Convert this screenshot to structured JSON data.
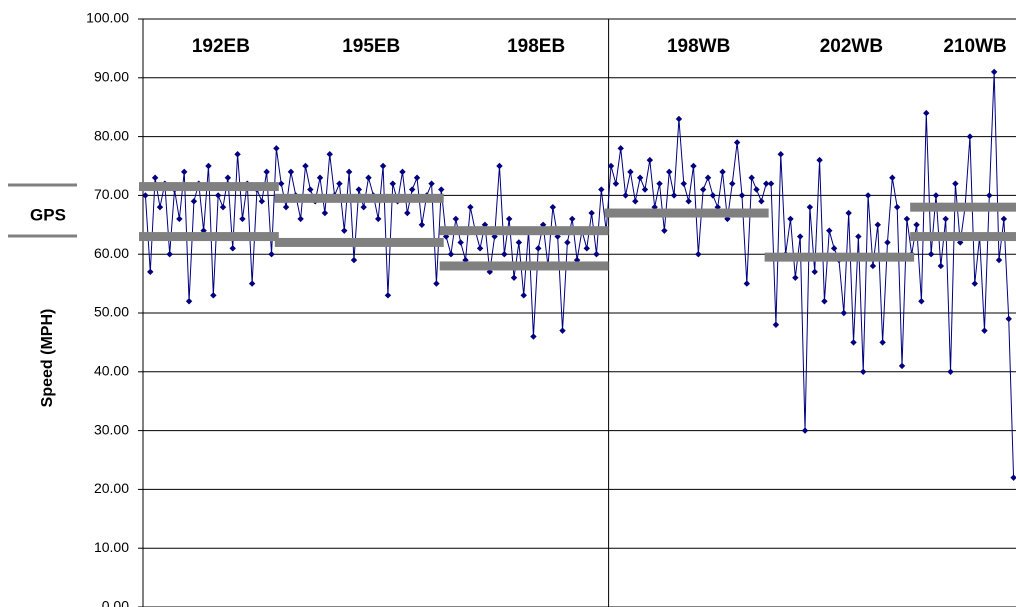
{
  "chart_data": {
    "type": "line",
    "y_label": "Speed (MPH)",
    "legend_label": "GPS",
    "color": "#000080",
    "band_color": "#808080",
    "grid": true,
    "ylim": [
      0,
      100
    ],
    "yticks": [
      {
        "value": 0,
        "label": "0.00"
      },
      {
        "value": 10,
        "label": "10.00"
      },
      {
        "value": 20,
        "label": "20.00"
      },
      {
        "value": 30,
        "label": "30.00"
      },
      {
        "value": 40,
        "label": "40.00"
      },
      {
        "value": 50,
        "label": "50.00"
      },
      {
        "value": 60,
        "label": "60.00"
      },
      {
        "value": 70,
        "label": "70.00"
      },
      {
        "value": 80,
        "label": "80.00"
      },
      {
        "value": 90,
        "label": "90.00"
      },
      {
        "value": 100,
        "label": "100.00"
      }
    ],
    "segments": [
      {
        "label": "192EB",
        "start": 0,
        "end": 28,
        "levels": [
          71.5,
          63
        ]
      },
      {
        "label": "195EB",
        "start": 28,
        "end": 62,
        "levels": [
          69.5,
          62
        ]
      },
      {
        "label": "198EB",
        "start": 62,
        "end": 96,
        "levels": [
          64,
          58
        ]
      },
      {
        "label": "198WB",
        "start": 96,
        "end": 129,
        "levels": [
          67
        ]
      },
      {
        "label": "202WB",
        "start": 129,
        "end": 159,
        "levels": [
          59.5
        ]
      },
      {
        "label": "210WB",
        "start": 159,
        "end": 180,
        "levels": [
          68,
          63
        ]
      }
    ],
    "values": [
      70,
      57,
      73,
      68,
      72,
      60,
      71,
      66,
      74,
      52,
      69,
      72,
      64,
      75,
      53,
      70,
      68,
      73,
      61,
      77,
      66,
      72,
      55,
      71,
      69,
      74,
      60,
      78,
      72,
      68,
      74,
      70,
      66,
      75,
      71,
      69,
      73,
      67,
      77,
      70,
      72,
      64,
      74,
      59,
      71,
      68,
      73,
      70,
      66,
      75,
      53,
      72,
      69,
      74,
      67,
      71,
      73,
      65,
      70,
      72,
      55,
      71,
      63,
      60,
      66,
      62,
      59,
      68,
      64,
      61,
      65,
      57,
      63,
      75,
      60,
      66,
      56,
      62,
      53,
      64,
      46,
      61,
      65,
      58,
      68,
      63,
      47,
      62,
      66,
      59,
      64,
      61,
      67,
      60,
      71,
      64,
      75,
      72,
      78,
      70,
      74,
      69,
      73,
      71,
      76,
      68,
      72,
      64,
      74,
      70,
      83,
      72,
      69,
      75,
      60,
      71,
      73,
      70,
      68,
      74,
      66,
      72,
      79,
      70,
      55,
      73,
      71,
      69,
      72,
      72,
      48,
      77,
      60,
      66,
      56,
      63,
      30,
      68,
      57,
      76,
      52,
      64,
      61,
      59,
      50,
      67,
      45,
      63,
      40,
      70,
      58,
      65,
      45,
      62,
      73,
      68,
      41,
      66,
      60,
      65,
      52,
      84,
      60,
      70,
      58,
      66,
      40,
      72,
      62,
      68,
      80,
      55,
      63,
      47,
      70,
      91,
      59,
      66,
      49,
      22
    ]
  }
}
